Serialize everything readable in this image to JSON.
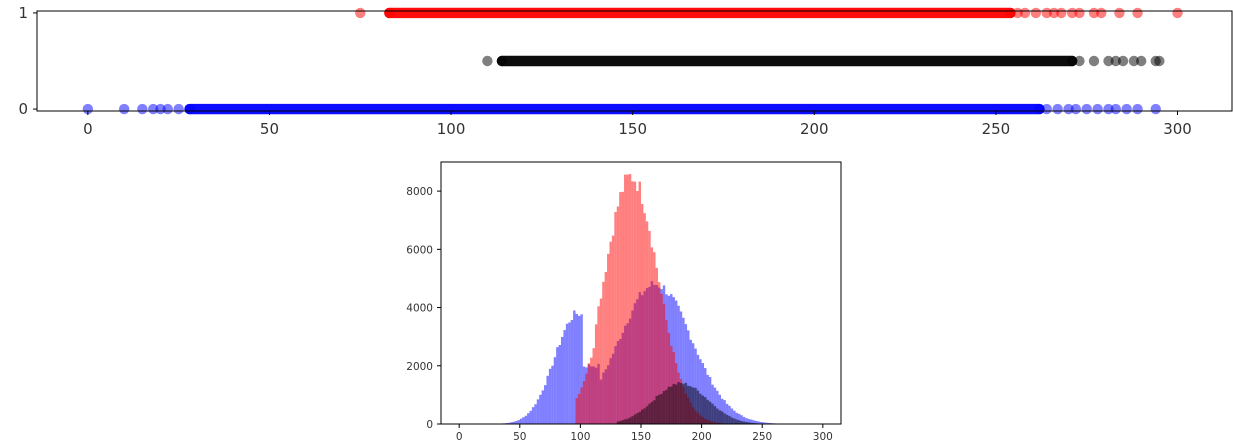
{
  "chart_data": [
    {
      "type": "scatter",
      "title": "",
      "xlabel": "",
      "ylabel": "",
      "xlim": [
        -14,
        315
      ],
      "ylim": [
        -0.02,
        1.02
      ],
      "grid": false,
      "xticks": [
        0,
        50,
        100,
        150,
        200,
        250,
        300
      ],
      "yticks": [
        0,
        1
      ],
      "series": [
        {
          "color": "#ff0000",
          "y": 1,
          "continuous_range": [
            83,
            254
          ],
          "x": [
            75,
            83,
            254,
            256,
            258,
            261,
            264,
            266,
            268,
            271,
            273,
            277,
            279,
            284,
            289,
            300
          ]
        },
        {
          "color": "#000000",
          "y": 0.5,
          "continuous_range": [
            114,
            271
          ],
          "x": [
            110,
            114,
            271,
            273,
            277,
            281,
            283,
            285,
            288,
            290,
            294,
            295
          ]
        },
        {
          "color": "#0000ff",
          "y": 0,
          "continuous_range": [
            28,
            262
          ],
          "x": [
            0,
            10,
            15,
            18,
            20,
            22,
            25,
            28,
            262,
            264,
            267,
            270,
            272,
            275,
            278,
            281,
            283,
            286,
            289,
            294
          ]
        }
      ]
    },
    {
      "type": "histogram",
      "title": "",
      "xlabel": "",
      "ylabel": "",
      "xlim": [
        -15,
        315
      ],
      "ylim": [
        0,
        9000
      ],
      "grid": false,
      "xticks": [
        0,
        50,
        100,
        150,
        200,
        250,
        300
      ],
      "yticks": [
        0,
        2000,
        4000,
        6000,
        8000
      ],
      "bin_width": 2,
      "series": [
        {
          "color": "#0000ff",
          "alpha": 0.5,
          "distribution": "bimodal, peaks near x=100 (~3800) and x=160 (~4800)",
          "range": [
            18,
            278
          ],
          "peak_value": 4800
        },
        {
          "color": "#ff0000",
          "alpha": 0.5,
          "distribution": "unimodal, mean near x=140",
          "range": [
            97,
            230
          ],
          "peak_value": 8700
        },
        {
          "color": "#000000",
          "alpha": 0.5,
          "distribution": "unimodal, mean near x=185",
          "range": [
            130,
            260
          ],
          "peak_value": 1400
        }
      ]
    }
  ]
}
